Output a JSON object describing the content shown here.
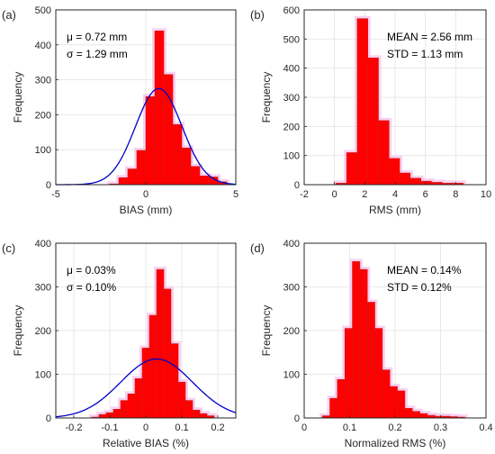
{
  "colors": {
    "bar": "#ff0000",
    "bar_edge": "#c81e1e",
    "glow": "#f7c6ee",
    "fit_curve": "#0000c8"
  },
  "chart_data": [
    {
      "panel": "(a)",
      "type": "bar",
      "xlabel": "BIAS (mm)",
      "ylabel": "Frequency",
      "xlim": [
        -5,
        5
      ],
      "ylim": [
        0,
        500
      ],
      "xticks": [
        -5,
        0,
        5
      ],
      "yticks": [
        0,
        100,
        200,
        300,
        400,
        500
      ],
      "grid": true,
      "bin_width": 0.5,
      "bins_start": [
        -2,
        -1.5,
        -1,
        -0.5,
        0,
        0.5,
        1,
        1.5,
        2,
        2.5,
        3,
        3.5,
        4
      ],
      "values": [
        2,
        20,
        45,
        98,
        252,
        440,
        315,
        172,
        105,
        52,
        25,
        22,
        8
      ],
      "annotations": [
        "μ = 0.72 mm",
        "σ = 1.29 mm"
      ],
      "fit": {
        "mu": 0.72,
        "sigma": 1.29,
        "peak": 275
      }
    },
    {
      "panel": "(b)",
      "type": "bar",
      "xlabel": "RMS (mm)",
      "ylabel": "Frequency",
      "xlim": [
        -2,
        10
      ],
      "ylim": [
        0,
        600
      ],
      "xticks": [
        -2,
        0,
        2,
        4,
        6,
        8,
        10
      ],
      "yticks": [
        0,
        100,
        200,
        300,
        400,
        500,
        600
      ],
      "grid": true,
      "bin_width": 0.7,
      "bins_start": [
        0.1,
        0.8,
        1.5,
        2.2,
        2.9,
        3.6,
        4.3,
        5.0,
        5.7,
        6.4,
        7.1,
        7.8
      ],
      "values": [
        5,
        110,
        570,
        435,
        220,
        90,
        40,
        22,
        12,
        8,
        5,
        5
      ],
      "annotations": [
        "MEAN = 2.56 mm",
        "STD =  1.13 mm"
      ]
    },
    {
      "panel": "(c)",
      "type": "bar",
      "xlabel": "Relative BIAS (%)",
      "ylabel": "Frequency",
      "xlim": [
        -0.25,
        0.25
      ],
      "ylim": [
        0,
        400
      ],
      "xticks": [
        -0.2,
        -0.1,
        0,
        0.1,
        0.2
      ],
      "yticks": [
        0,
        100,
        200,
        300,
        400
      ],
      "tick_labels": [
        "-0.2",
        "-0.1",
        "0",
        "0.1",
        "0.2"
      ],
      "grid": true,
      "bin_width": 0.02,
      "bins_start": [
        -0.15,
        -0.13,
        -0.11,
        -0.09,
        -0.07,
        -0.05,
        -0.03,
        -0.01,
        0.01,
        0.03,
        0.05,
        0.07,
        0.09,
        0.11,
        0.13,
        0.15,
        0.17
      ],
      "values": [
        2,
        8,
        12,
        20,
        40,
        55,
        90,
        160,
        235,
        340,
        295,
        170,
        82,
        40,
        18,
        10,
        5
      ],
      "annotations": [
        "μ = 0.03%",
        "σ = 0.10%"
      ],
      "fit": {
        "mu": 0.03,
        "sigma": 0.1,
        "peak": 135
      }
    },
    {
      "panel": "(d)",
      "type": "bar",
      "xlabel": "Normalized RMS (%)",
      "ylabel": "Frequency",
      "xlim": [
        0,
        0.4
      ],
      "ylim": [
        0,
        400
      ],
      "xticks": [
        0,
        0.1,
        0.2,
        0.3,
        0.4
      ],
      "yticks": [
        0,
        100,
        200,
        300,
        400
      ],
      "tick_labels": [
        "0",
        "0.1",
        "0.2",
        "0.3",
        "0.4"
      ],
      "grid": true,
      "bin_width": 0.0165,
      "bins_start": [
        0.04,
        0.0565,
        0.073,
        0.0895,
        0.106,
        0.1225,
        0.139,
        0.1555,
        0.172,
        0.1885,
        0.205,
        0.2215,
        0.238,
        0.2545,
        0.271,
        0.2875,
        0.304,
        0.3205,
        0.337
      ],
      "values": [
        5,
        45,
        88,
        205,
        358,
        340,
        265,
        205,
        110,
        72,
        62,
        22,
        15,
        10,
        6,
        4,
        4,
        3,
        2
      ],
      "annotations": [
        "MEAN = 0.14%",
        "STD =  0.12%"
      ]
    }
  ]
}
